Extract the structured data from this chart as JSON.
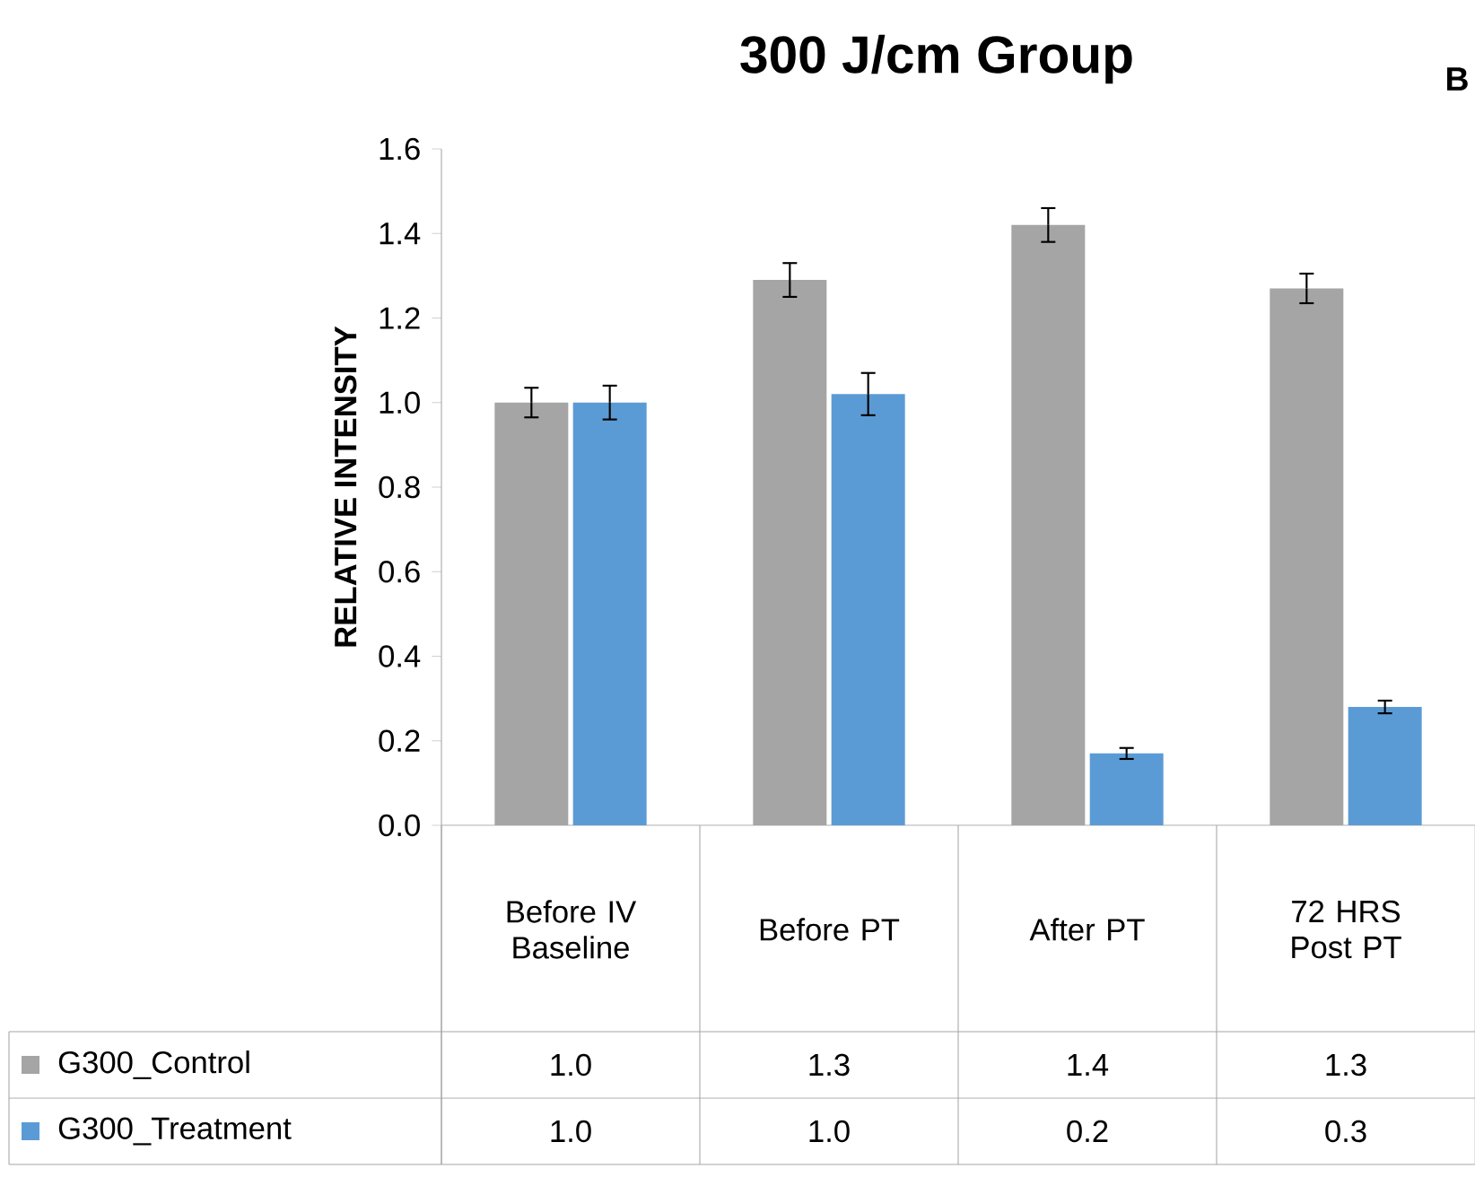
{
  "chart_data": {
    "type": "bar",
    "title": "300 J/cm  Group",
    "ylabel": "RELATIVE INTENSITY",
    "annotations": [
      "B"
    ],
    "categories": [
      "Before IV Baseline",
      "Before PT",
      "After PT",
      "72 HRS Post PT"
    ],
    "series": [
      {
        "name": "G300_Control",
        "color": "#a5a5a5",
        "values": [
          1.0,
          1.29,
          1.42,
          1.27
        ],
        "errors": [
          0.035,
          0.04,
          0.04,
          0.035
        ],
        "value_labels": [
          "1.0",
          "1.3",
          "1.4",
          "1.3"
        ]
      },
      {
        "name": "G300_Treatment",
        "color": "#5b9bd5",
        "values": [
          1.0,
          1.02,
          0.17,
          0.28
        ],
        "errors": [
          0.04,
          0.05,
          0.013,
          0.015
        ],
        "value_labels": [
          "1.0",
          "1.0",
          "0.2",
          "0.3"
        ]
      }
    ],
    "ylim": [
      0,
      1.6
    ],
    "yticks": [
      {
        "value": 0,
        "label": "0.0"
      },
      {
        "value": 0.2,
        "label": "0.2"
      },
      {
        "value": 0.4,
        "label": "0.4"
      },
      {
        "value": 0.6,
        "label": "0.6"
      },
      {
        "value": 0.8,
        "label": "0.8"
      },
      {
        "value": 1.0,
        "label": "1.0"
      },
      {
        "value": 1.2,
        "label": "1.2"
      },
      {
        "value": 1.4,
        "label": "1.4"
      },
      {
        "value": 1.6,
        "label": "1.6"
      }
    ],
    "grid": false,
    "legend": "bottom"
  }
}
